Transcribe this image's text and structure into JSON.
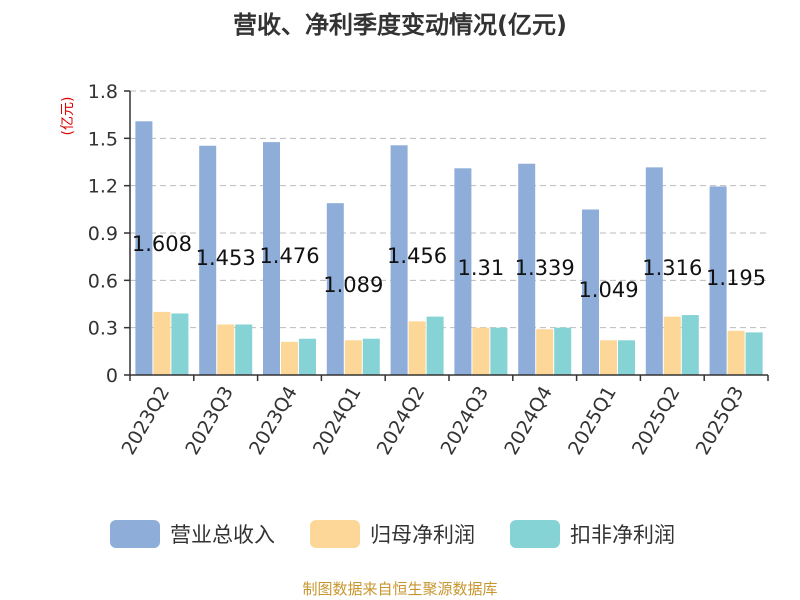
{
  "chart_data": {
    "type": "bar",
    "title": "营收、净利季度变动情况(亿元)",
    "unit_label": "(亿元)",
    "categories": [
      "2023Q2",
      "2023Q3",
      "2023Q4",
      "2024Q1",
      "2024Q2",
      "2024Q3",
      "2024Q4",
      "2025Q1",
      "2025Q2",
      "2025Q3"
    ],
    "series": [
      {
        "name": "营业总收入",
        "color": "#8eadd9",
        "values": [
          1.608,
          1.453,
          1.476,
          1.089,
          1.456,
          1.31,
          1.339,
          1.049,
          1.316,
          1.195
        ],
        "labels": [
          "1.608",
          "1.453",
          "1.476",
          "1.089",
          "1.456",
          "1.31",
          "1.339",
          "1.049",
          "1.316",
          "1.195"
        ]
      },
      {
        "name": "归母净利润",
        "color": "#fdd797",
        "values": [
          0.4,
          0.32,
          0.21,
          0.22,
          0.34,
          0.3,
          0.29,
          0.22,
          0.37,
          0.28
        ]
      },
      {
        "name": "扣非净利润",
        "color": "#86d3d6",
        "values": [
          0.39,
          0.32,
          0.23,
          0.23,
          0.37,
          0.3,
          0.3,
          0.22,
          0.38,
          0.27
        ]
      }
    ],
    "ylim": [
      0,
      1.8
    ],
    "yticks": [
      "0",
      "0.3",
      "0.6",
      "0.9",
      "1.2",
      "1.5",
      "1.8"
    ],
    "ytick_values": [
      0,
      0.3,
      0.6,
      0.9,
      1.2,
      1.5,
      1.8
    ],
    "grid": true,
    "legend_position": "bottom"
  },
  "source": "制图数据来自恒生聚源数据库"
}
